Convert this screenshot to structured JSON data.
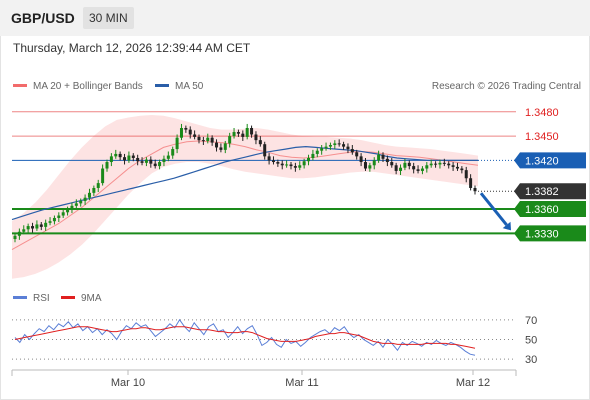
{
  "header": {
    "symbol": "GBP/USD",
    "timeframe": "30 MIN"
  },
  "timestamp": "Thursday, March 12, 2026 12:39:44 AM CET",
  "legend": {
    "bollinger": "MA 20 + Bollinger Bands",
    "ma50": "MA 50",
    "source": "Research © 2026 Trading Central"
  },
  "rsi_legend": {
    "rsi": "RSI",
    "ma9": "9MA"
  },
  "colors": {
    "resistance": "#e02020",
    "support": "#1a8a1a",
    "pivot": "#1a5fb4",
    "bollinger": "#f26b6b",
    "ma50": "#2a5ea8",
    "rsi": "#5b7fd6",
    "rsi_ma": "#e02020",
    "bull": "#1a8a1a",
    "bear": "#222222",
    "current": "#333333"
  },
  "chart_data": [
    {
      "type": "candlestick",
      "title": "GBP/USD",
      "x_ticks": [
        "Mar 10",
        "Mar 11",
        "Mar 12"
      ],
      "ylim": [
        1.327,
        1.3497
      ],
      "levels": [
        {
          "label": "1.3480",
          "value": 1.348,
          "kind": "resistance"
        },
        {
          "label": "1.3450",
          "value": 1.345,
          "kind": "resistance"
        },
        {
          "label": "1.3420",
          "value": 1.342,
          "kind": "pivot"
        },
        {
          "label": "1.3382",
          "value": 1.3382,
          "kind": "current"
        },
        {
          "label": "1.3360",
          "value": 1.336,
          "kind": "support"
        },
        {
          "label": "1.3330",
          "value": 1.333,
          "kind": "support"
        }
      ],
      "close": [
        1.3327,
        1.3332,
        1.3335,
        1.3339,
        1.3336,
        1.3341,
        1.3338,
        1.3343,
        1.3345,
        1.3349,
        1.3352,
        1.3356,
        1.336,
        1.3364,
        1.3367,
        1.337,
        1.3374,
        1.338,
        1.3386,
        1.3392,
        1.341,
        1.3418,
        1.3425,
        1.3428,
        1.3424,
        1.342,
        1.3426,
        1.3423,
        1.3419,
        1.3417,
        1.3421,
        1.3416,
        1.3413,
        1.3418,
        1.3422,
        1.3426,
        1.3434,
        1.3448,
        1.346,
        1.3458,
        1.3452,
        1.3449,
        1.3445,
        1.3444,
        1.3448,
        1.3442,
        1.3436,
        1.3433,
        1.3441,
        1.345,
        1.3455,
        1.3453,
        1.3449,
        1.346,
        1.3452,
        1.3445,
        1.344,
        1.3425,
        1.342,
        1.3418,
        1.3416,
        1.3414,
        1.3415,
        1.3413,
        1.3411,
        1.3414,
        1.3419,
        1.3423,
        1.3428,
        1.3432,
        1.3435,
        1.3437,
        1.3439,
        1.3441,
        1.344,
        1.3437,
        1.3434,
        1.343,
        1.3425,
        1.3418,
        1.341,
        1.3414,
        1.342,
        1.3427,
        1.3422,
        1.3418,
        1.3414,
        1.3407,
        1.3411,
        1.3417,
        1.3413,
        1.3409,
        1.3407,
        1.341,
        1.3414,
        1.3416,
        1.3415,
        1.3417,
        1.3416,
        1.3414,
        1.3412,
        1.341,
        1.3408,
        1.3398,
        1.3386,
        1.3382
      ],
      "ma50": [
        1.3347,
        1.3351,
        1.3355,
        1.3359,
        1.3362,
        1.3365,
        1.3368,
        1.3371,
        1.3374,
        1.3377,
        1.338,
        1.3383,
        1.3386,
        1.3389,
        1.3392,
        1.3395,
        1.3398,
        1.3402,
        1.3406,
        1.341,
        1.3414,
        1.3418,
        1.3421,
        1.3424,
        1.3427,
        1.343,
        1.3432,
        1.3434,
        1.3436,
        1.3437,
        1.3436,
        1.3435,
        1.3434,
        1.3433,
        1.3432,
        1.343,
        1.3428,
        1.3425,
        1.3423,
        1.3422,
        1.3421,
        1.342,
        1.342,
        1.342,
        1.342,
        1.342,
        1.342
      ],
      "bollinger": {
        "mid": [
          1.331,
          1.3318,
          1.3326,
          1.3334,
          1.3342,
          1.3352,
          1.3362,
          1.3374,
          1.3386,
          1.3398,
          1.341,
          1.342,
          1.3428,
          1.3436,
          1.344,
          1.3443,
          1.3444,
          1.3443,
          1.3442,
          1.344,
          1.3437,
          1.3433,
          1.343,
          1.3426,
          1.3424,
          1.3423,
          1.3424,
          1.3426,
          1.3428,
          1.343,
          1.3431,
          1.343,
          1.3428,
          1.3426,
          1.3425,
          1.3424,
          1.3422,
          1.342,
          1.3418,
          1.3416,
          1.3414
        ],
        "upper": [
          1.3345,
          1.3355,
          1.3368,
          1.3384,
          1.3402,
          1.342,
          1.3436,
          1.345,
          1.3462,
          1.347,
          1.3473,
          1.3475,
          1.3476,
          1.3475,
          1.3472,
          1.3468,
          1.3464,
          1.346,
          1.3458,
          1.3458,
          1.3459,
          1.346,
          1.3458,
          1.3455,
          1.3452,
          1.345,
          1.3449,
          1.3449,
          1.3448,
          1.3447,
          1.3445,
          1.3442,
          1.3439,
          1.3437,
          1.3436,
          1.3435,
          1.3434,
          1.3432,
          1.343,
          1.3428,
          1.3426
        ],
        "lower": [
          1.3274,
          1.3276,
          1.328,
          1.3286,
          1.3294,
          1.3304,
          1.3316,
          1.333,
          1.3346,
          1.3362,
          1.3378,
          1.3392,
          1.3404,
          1.3412,
          1.3416,
          1.3418,
          1.3418,
          1.3416,
          1.3413,
          1.3409,
          1.3406,
          1.3404,
          1.3402,
          1.34,
          1.3398,
          1.3398,
          1.3399,
          1.3401,
          1.3403,
          1.3405,
          1.3406,
          1.3406,
          1.3404,
          1.3402,
          1.34,
          1.3398,
          1.3396,
          1.3394,
          1.3392,
          1.339,
          1.3388
        ]
      },
      "projection": {
        "from": 1.3382,
        "to": 1.333
      }
    },
    {
      "type": "line",
      "title": "RSI",
      "ylim": [
        25,
        78
      ],
      "y_ticks": [
        "70",
        "50",
        "30"
      ],
      "y_tick_values": [
        70,
        50,
        30
      ],
      "series": [
        {
          "name": "RSI",
          "values": [
            52,
            47,
            55,
            50,
            56,
            61,
            58,
            64,
            60,
            66,
            63,
            68,
            62,
            66,
            59,
            63,
            57,
            61,
            55,
            60,
            56,
            50,
            58,
            64,
            61,
            67,
            63,
            65,
            59,
            53,
            57,
            61,
            66,
            62,
            70,
            63,
            58,
            67,
            61,
            55,
            63,
            66,
            58,
            60,
            52,
            57,
            63,
            56,
            61,
            64,
            55,
            44,
            47,
            52,
            45,
            42,
            50,
            46,
            48,
            43,
            47,
            52,
            55,
            58,
            60,
            56,
            62,
            59,
            63,
            56,
            52,
            55,
            50,
            47,
            44,
            48,
            42,
            50,
            45,
            39,
            47,
            44,
            48,
            46,
            43,
            47,
            45,
            49,
            46,
            44,
            47,
            45,
            42,
            38,
            35,
            34
          ]
        },
        {
          "name": "9MA",
          "values": [
            50,
            51,
            52,
            53,
            54,
            55,
            56,
            57,
            58,
            59,
            60,
            61,
            62,
            63,
            63,
            63,
            62,
            61,
            60,
            59,
            58,
            58,
            59,
            60,
            61,
            61,
            62,
            62,
            61,
            60,
            60,
            61,
            62,
            63,
            63,
            63,
            62,
            61,
            60,
            60,
            60,
            59,
            58,
            58,
            57,
            57,
            57,
            58,
            58,
            57,
            55,
            53,
            51,
            50,
            49,
            48,
            48,
            48,
            48,
            49,
            50,
            51,
            53,
            54,
            55,
            56,
            56,
            57,
            57,
            56,
            55,
            54,
            52,
            50,
            48,
            47,
            46,
            46,
            46,
            45,
            45,
            45,
            45,
            45,
            45,
            46,
            46,
            46,
            46,
            46,
            45,
            45,
            44,
            43,
            42,
            41
          ]
        }
      ]
    }
  ]
}
